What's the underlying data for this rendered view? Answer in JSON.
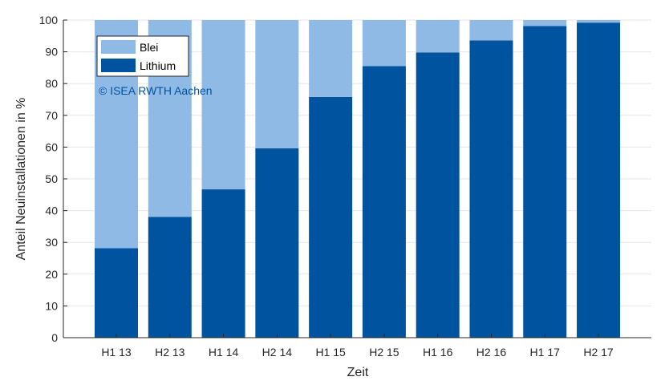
{
  "chart_data": {
    "type": "bar",
    "stacked": true,
    "title": "",
    "xlabel": "Zeit",
    "ylabel": "Anteil Neuinstallationen in %",
    "ylim": [
      0,
      100
    ],
    "yticks": [
      0,
      10,
      20,
      30,
      40,
      50,
      60,
      70,
      80,
      90,
      100
    ],
    "grid": true,
    "legend_position": "top-left",
    "categories": [
      "H1 13",
      "H2 13",
      "H1 14",
      "H2 14",
      "H1 15",
      "H2 15",
      "H1 16",
      "H2 16",
      "H1 17",
      "H2 17"
    ],
    "series": [
      {
        "name": "Lithium",
        "color": "#00539f",
        "values": [
          28.2,
          38.0,
          46.7,
          59.6,
          75.8,
          85.5,
          89.8,
          93.6,
          98.1,
          99.2
        ]
      },
      {
        "name": "Blei",
        "color": "#8ebae5",
        "values": [
          71.8,
          62.0,
          53.3,
          40.4,
          24.2,
          14.5,
          10.2,
          6.4,
          1.9,
          0.8
        ]
      }
    ],
    "legend": [
      {
        "label": "Blei",
        "color": "#8ebae5"
      },
      {
        "label": "Lithium",
        "color": "#00539f"
      }
    ],
    "annotation": {
      "text": "© ISEA RWTH Aachen",
      "color": "#00539f"
    }
  }
}
